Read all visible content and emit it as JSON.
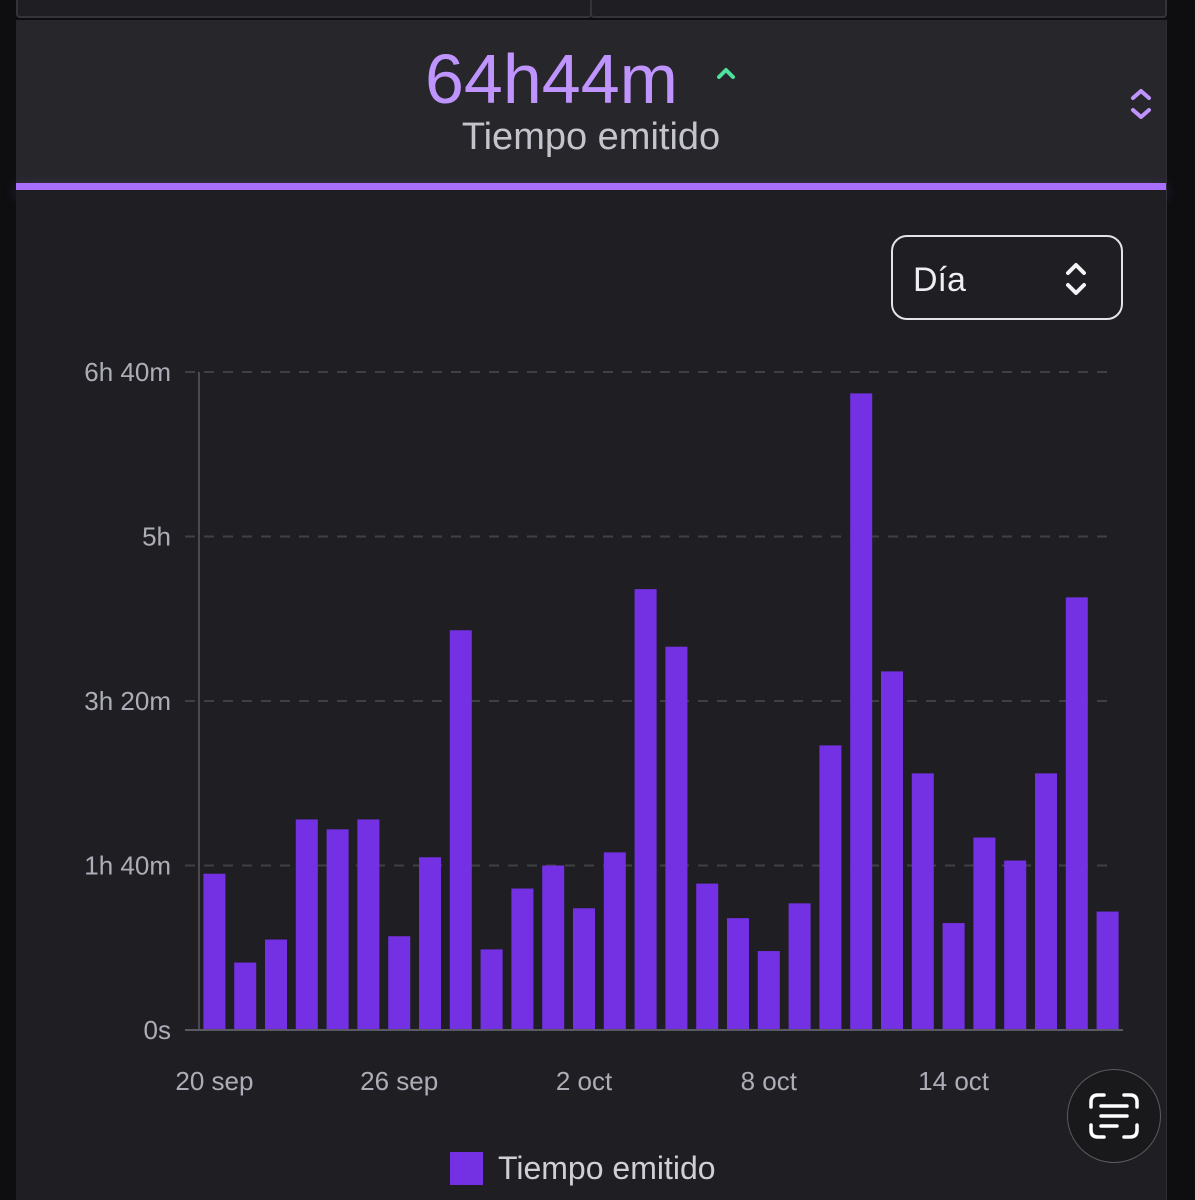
{
  "header": {
    "value": "64h44m",
    "label": "Tiempo emitido",
    "trend_icon": "chevron-up-icon",
    "sort_icon": "sort-arrows-icon"
  },
  "period_select": {
    "selected": "Día",
    "icon": "chevron-up-down-icon"
  },
  "overlay": {
    "live_text_icon": "live-text-icon"
  },
  "colors": {
    "accent": "#bf94ff",
    "indicator": "#a970ff",
    "trend_up": "#4fe0a0",
    "panel_background": "#1f1f23",
    "header_background": "#26262b"
  },
  "chart_data": {
    "type": "bar",
    "title": "",
    "xlabel": "",
    "ylabel": "",
    "series": [
      {
        "name": "Tiempo emitido",
        "color": "#7431e3",
        "values": [
          95,
          41,
          55,
          128,
          122,
          128,
          57,
          105,
          243,
          49,
          86,
          100,
          74,
          108,
          268,
          233,
          89,
          68,
          48,
          77,
          173,
          387,
          218,
          156,
          65,
          117,
          103,
          156,
          263,
          72
        ]
      }
    ],
    "x_ticks": [
      "20 sep",
      "26 sep",
      "2 oct",
      "8 oct",
      "14 oct"
    ],
    "y_ticks": [
      {
        "value": 0,
        "label": "0s"
      },
      {
        "value": 100,
        "label": "1h 40m"
      },
      {
        "value": 200,
        "label": "3h 20m"
      },
      {
        "value": 300,
        "label": "5h"
      },
      {
        "value": 400,
        "label": "6h 40m"
      }
    ],
    "ylim": [
      0,
      400
    ],
    "grid": true,
    "legend": "bottom-center"
  }
}
